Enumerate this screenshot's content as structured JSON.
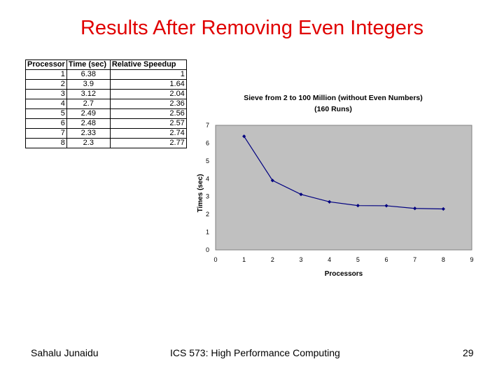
{
  "slide": {
    "title": "Results After Removing Even Integers"
  },
  "table": {
    "headers": [
      "Processor",
      "Time (sec)",
      "Relative Speedup"
    ],
    "rows": [
      [
        "1",
        "6.38",
        "1"
      ],
      [
        "2",
        "3.9",
        "1.64"
      ],
      [
        "3",
        "3.12",
        "2.04"
      ],
      [
        "4",
        "2.7",
        "2.36"
      ],
      [
        "5",
        "2.49",
        "2.56"
      ],
      [
        "6",
        "2.48",
        "2.57"
      ],
      [
        "7",
        "2.33",
        "2.74"
      ],
      [
        "8",
        "2.3",
        "2.77"
      ]
    ]
  },
  "chart_data": {
    "type": "line",
    "title_lines": [
      "Sieve from 2 to 100 Million (without Even Numbers)",
      "(160 Runs)"
    ],
    "xlabel": "Processors",
    "ylabel": "Times (sec)",
    "x": [
      1,
      2,
      3,
      4,
      5,
      6,
      7,
      8
    ],
    "series": [
      {
        "values": [
          6.38,
          3.9,
          3.12,
          2.7,
          2.49,
          2.48,
          2.33,
          2.3
        ]
      }
    ],
    "xlim": [
      0,
      9
    ],
    "ylim": [
      0,
      7
    ],
    "xticks": [
      "0",
      "1",
      "2",
      "3",
      "4",
      "5",
      "6",
      "7",
      "8",
      "9"
    ],
    "yticks": [
      "0",
      "1",
      "2",
      "3",
      "4",
      "5",
      "6",
      "7"
    ],
    "plot_background": "#c0c0c0",
    "series_color": "#000080",
    "grid": false,
    "legend": "none"
  },
  "footer": {
    "author": "Sahalu Junaidu",
    "course": "ICS 573: High Performance Computing",
    "page": "29"
  }
}
